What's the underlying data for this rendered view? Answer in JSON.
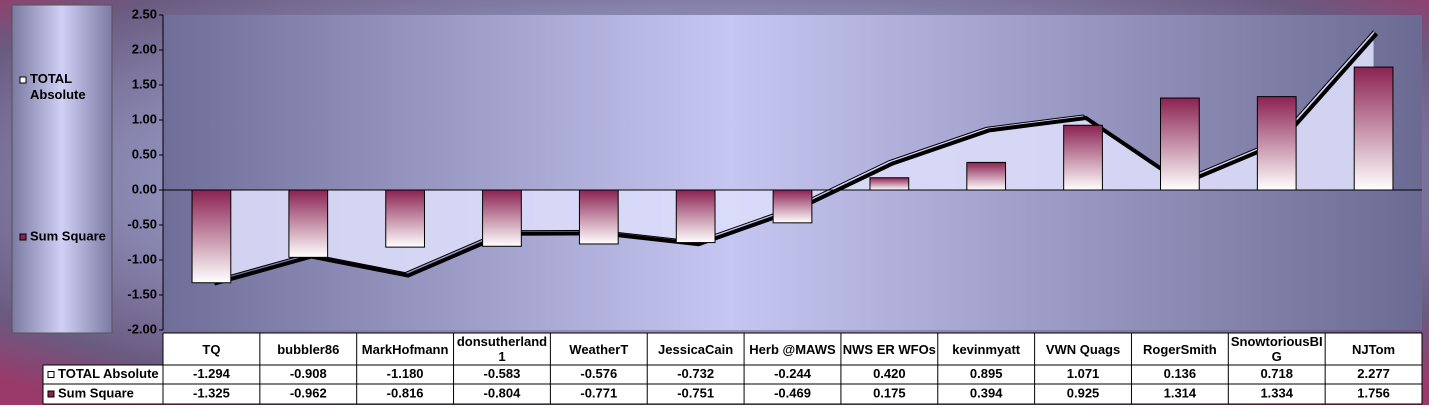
{
  "chart_data": {
    "type": "bar-area",
    "categories": [
      "TQ",
      "bubbler86",
      "MarkHofmann",
      "donsutherland1",
      "WeatherT",
      "JessicaCain",
      "Herb @MAWS",
      "NWS ER WFOs",
      "kevinmyatt",
      "VWN Quags",
      "RogerSmith",
      "SnowtoriousBIG",
      "NJTom"
    ],
    "series": [
      {
        "name": "TOTAL Absolute",
        "color": "#ffffff",
        "kind": "area",
        "values": [
          -1.294,
          -0.908,
          -1.18,
          -0.583,
          -0.576,
          -0.732,
          -0.244,
          0.42,
          0.895,
          1.071,
          0.136,
          0.718,
          2.277
        ],
        "value_labels": [
          "-1.294",
          "-0.908",
          "-1.180",
          "-0.583",
          "-0.576",
          "-0.732",
          "-0.244",
          "0.420",
          "0.895",
          "1.071",
          "0.136",
          "0.718",
          "2.277"
        ]
      },
      {
        "name": "Sum Square",
        "color": "#8b2252",
        "kind": "bar",
        "values": [
          -1.325,
          -0.962,
          -0.816,
          -0.804,
          -0.771,
          -0.751,
          -0.469,
          0.175,
          0.394,
          0.925,
          1.314,
          1.334,
          1.756
        ],
        "value_labels": [
          "-1.325",
          "-0.962",
          "-0.816",
          "-0.804",
          "-0.771",
          "-0.751",
          "-0.469",
          "0.175",
          "0.394",
          "0.925",
          "1.314",
          "1.334",
          "1.756"
        ]
      }
    ],
    "ylim": [
      -2,
      2.5
    ],
    "yticks": [
      {
        "value": -2,
        "label": "-2.00"
      },
      {
        "value": -1.5,
        "label": "-1.50"
      },
      {
        "value": -1,
        "label": "-1.00"
      },
      {
        "value": -0.5,
        "label": "-0.50"
      },
      {
        "value": 0,
        "label": "0.00"
      },
      {
        "value": 0.5,
        "label": "0.50"
      },
      {
        "value": 1,
        "label": "1.00"
      },
      {
        "value": 1.5,
        "label": "1.50"
      },
      {
        "value": 2,
        "label": "2.00"
      },
      {
        "value": 2.5,
        "label": "2.50"
      }
    ]
  }
}
